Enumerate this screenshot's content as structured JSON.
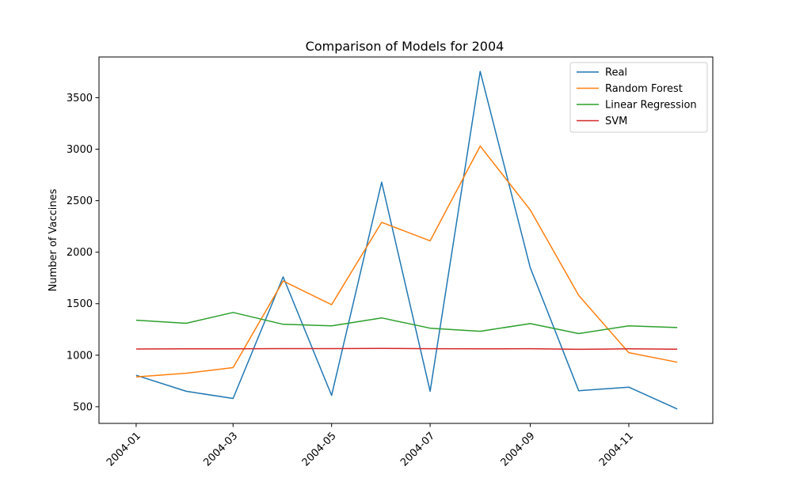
{
  "chart_data": {
    "type": "line",
    "title": "Comparison of Models for 2004",
    "xlabel": "",
    "ylabel": "Number of Vaccines",
    "x": [
      "2004-01",
      "2004-02",
      "2004-03",
      "2004-04",
      "2004-05",
      "2004-06",
      "2004-07",
      "2004-08",
      "2004-09",
      "2004-10",
      "2004-11",
      "2004-12"
    ],
    "x_ticks": [
      "2004-01",
      "2004-03",
      "2004-05",
      "2004-07",
      "2004-09",
      "2004-11"
    ],
    "y_ticks": [
      500,
      1000,
      1500,
      2000,
      2500,
      3000,
      3500
    ],
    "ylim": [
      338,
      3895
    ],
    "xlim": [
      "2003-12-09",
      "2004-12-23"
    ],
    "grid": false,
    "legend_position": "top-right",
    "series": [
      {
        "name": "Real",
        "color": "#1f77b4",
        "values": [
          805,
          650,
          580,
          1760,
          610,
          2680,
          650,
          3755,
          1850,
          655,
          690,
          478
        ]
      },
      {
        "name": "Random Forest",
        "color": "#ff7f0e",
        "values": [
          790,
          825,
          880,
          1720,
          1490,
          2290,
          2110,
          3030,
          2410,
          1580,
          1025,
          932
        ]
      },
      {
        "name": "Linear Regression",
        "color": "#2ca02c",
        "values": [
          1340,
          1310,
          1415,
          1300,
          1285,
          1362,
          1262,
          1232,
          1307,
          1210,
          1285,
          1268
        ]
      },
      {
        "name": "SVM",
        "color": "#d62728",
        "values": [
          1060,
          1062,
          1062,
          1064,
          1064,
          1066,
          1063,
          1062,
          1063,
          1057,
          1062,
          1058
        ]
      }
    ]
  }
}
